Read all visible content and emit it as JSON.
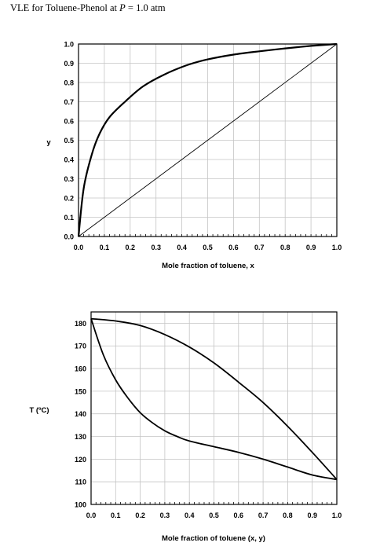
{
  "page_title": {
    "prefix": "VLE for Toluene-Phenol at ",
    "var": "P",
    "suffix": " = 1.0 atm"
  },
  "chart_data": [
    {
      "type": "line",
      "title": "",
      "xlabel": "Mole fraction of toluene, x",
      "ylabel": "y",
      "xlim": [
        0,
        1.0
      ],
      "ylim": [
        0,
        1.0
      ],
      "xticks": [
        "0.0",
        "0.1",
        "0.2",
        "0.3",
        "0.4",
        "0.5",
        "0.6",
        "0.7",
        "0.8",
        "0.9",
        "1.0"
      ],
      "yticks": [
        "0.0",
        "0.1",
        "0.2",
        "0.3",
        "0.4",
        "0.5",
        "0.6",
        "0.7",
        "0.8",
        "0.9",
        "1.0"
      ],
      "grid": true,
      "series": [
        {
          "x": [
            0,
            0.02,
            0.05,
            0.08,
            0.12,
            0.18,
            0.25,
            0.33,
            0.42,
            0.5,
            0.6,
            0.7,
            0.8,
            0.9,
            1.0
          ],
          "y": [
            0,
            0.25,
            0.42,
            0.53,
            0.62,
            0.7,
            0.78,
            0.84,
            0.89,
            0.92,
            0.945,
            0.962,
            0.977,
            0.99,
            1.0
          ]
        },
        {
          "x": [
            0,
            1.0
          ],
          "y": [
            0,
            1.0
          ]
        }
      ]
    },
    {
      "type": "line",
      "title": "",
      "xlabel": "Mole fraction of toluene (x, y)",
      "ylabel": "T (ºC)",
      "xlim": [
        0,
        1.0
      ],
      "ylim": [
        100,
        185
      ],
      "xticks": [
        "0.0",
        "0.1",
        "0.2",
        "0.3",
        "0.4",
        "0.5",
        "0.6",
        "0.7",
        "0.8",
        "0.9",
        "1.0"
      ],
      "yticks": [
        "100",
        "110",
        "120",
        "130",
        "140",
        "150",
        "160",
        "170",
        "180"
      ],
      "grid": true,
      "series": [
        {
          "x": [
            0,
            0.05,
            0.1,
            0.15,
            0.2,
            0.25,
            0.3,
            0.35,
            0.4,
            0.5,
            0.6,
            0.7,
            0.8,
            0.9,
            1.0
          ],
          "y": [
            182,
            166,
            155,
            147,
            140.5,
            136,
            132.5,
            130,
            128,
            125.5,
            123,
            120,
            116.5,
            113,
            111
          ]
        },
        {
          "x": [
            0,
            0.1,
            0.2,
            0.3,
            0.4,
            0.5,
            0.6,
            0.7,
            0.8,
            0.9,
            1.0
          ],
          "y": [
            182,
            181,
            179,
            175,
            169.5,
            162.5,
            154,
            145,
            134.5,
            123,
            111
          ]
        }
      ]
    }
  ]
}
